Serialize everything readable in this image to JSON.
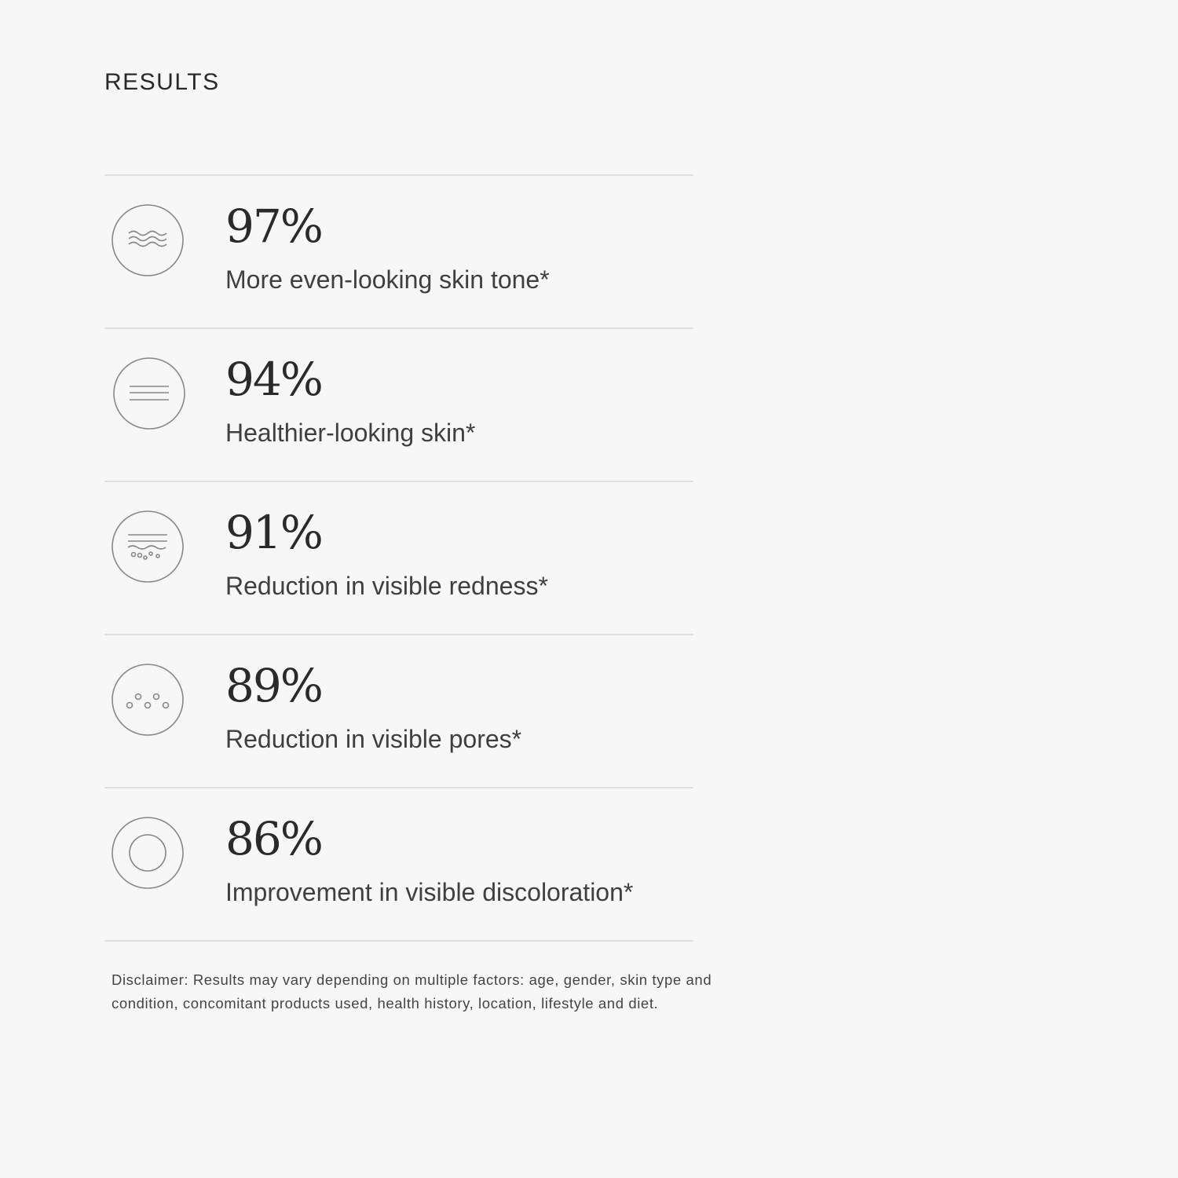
{
  "title": "RESULTS",
  "results": [
    {
      "value": "97%",
      "label": "More even-looking skin tone*",
      "icon": "waves-icon"
    },
    {
      "value": "94%",
      "label": "Healthier-looking skin*",
      "icon": "lines-icon"
    },
    {
      "value": "91%",
      "label": "Reduction in visible redness*",
      "icon": "skin-layers-icon"
    },
    {
      "value": "89%",
      "label": "Reduction in visible pores*",
      "icon": "pores-icon"
    },
    {
      "value": "86%",
      "label": "Improvement in visible discoloration*",
      "icon": "target-circle-icon"
    }
  ],
  "disclaimer": "Disclaimer: Results may vary depending on multiple factors: age, gender, skin type and condition, concomitant products used, health history, location, lifestyle and diet."
}
